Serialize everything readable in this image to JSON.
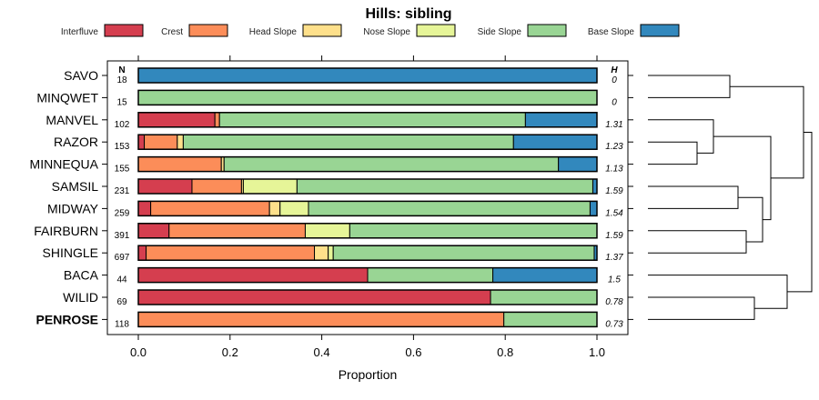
{
  "chart_data": {
    "type": "bar",
    "orientation": "horizontal-stacked",
    "title": "Hills: sibling",
    "xlabel": "Proportion",
    "xlim": [
      0,
      1
    ],
    "xticks": [
      0.0,
      0.2,
      0.4,
      0.6,
      0.8,
      1.0
    ],
    "xtick_labels": [
      "0.0",
      "0.2",
      "0.4",
      "0.6",
      "0.8",
      "1.0"
    ],
    "n_header": "N",
    "h_header": "H",
    "legend": [
      {
        "name": "Interfluve",
        "color": "#d53e4f"
      },
      {
        "name": "Crest",
        "color": "#fc8d59"
      },
      {
        "name": "Head Slope",
        "color": "#fee08b"
      },
      {
        "name": "Nose Slope",
        "color": "#e6f598"
      },
      {
        "name": "Side Slope",
        "color": "#99d594"
      },
      {
        "name": "Base Slope",
        "color": "#3288bd"
      }
    ],
    "rows": [
      {
        "label": "SAVO",
        "n": "18",
        "h": "0",
        "bold": false,
        "values": [
          0,
          0,
          0,
          0,
          0,
          1.0
        ]
      },
      {
        "label": "MINQWET",
        "n": "15",
        "h": "0",
        "bold": false,
        "values": [
          0,
          0,
          0,
          0,
          1.0,
          0
        ]
      },
      {
        "label": "MANVEL",
        "n": "102",
        "h": "1.31",
        "bold": false,
        "values": [
          0.167,
          0.01,
          0,
          0,
          0.667,
          0.156
        ]
      },
      {
        "label": "RAZOR",
        "n": "153",
        "h": "1.23",
        "bold": false,
        "values": [
          0.013,
          0.072,
          0.013,
          0,
          0.72,
          0.182
        ]
      },
      {
        "label": "MINNEQUA",
        "n": "155",
        "h": "1.13",
        "bold": false,
        "values": [
          0,
          0.181,
          0.006,
          0,
          0.729,
          0.084
        ]
      },
      {
        "label": "SAMSIL",
        "n": "231",
        "h": "1.59",
        "bold": false,
        "values": [
          0.117,
          0.108,
          0.004,
          0.117,
          0.645,
          0.009
        ]
      },
      {
        "label": "MIDWAY",
        "n": "259",
        "h": "1.54",
        "bold": false,
        "values": [
          0.027,
          0.259,
          0.023,
          0.062,
          0.614,
          0.015
        ]
      },
      {
        "label": "FAIRBURN",
        "n": "391",
        "h": "1.59",
        "bold": false,
        "values": [
          0.067,
          0.297,
          0,
          0.097,
          0.539,
          0
        ]
      },
      {
        "label": "SHINGLE",
        "n": "697",
        "h": "1.37",
        "bold": false,
        "values": [
          0.017,
          0.367,
          0.03,
          0.011,
          0.569,
          0.006
        ]
      },
      {
        "label": "BACA",
        "n": "44",
        "h": "1.5",
        "bold": false,
        "values": [
          0.5,
          0,
          0,
          0,
          0.273,
          0.227
        ]
      },
      {
        "label": "WILID",
        "n": "69",
        "h": "0.78",
        "bold": false,
        "values": [
          0.768,
          0,
          0,
          0,
          0.232,
          0
        ]
      },
      {
        "label": "PENROSE",
        "n": "118",
        "h": "0.73",
        "bold": true,
        "values": [
          0,
          0.797,
          0,
          0,
          0.203,
          0
        ]
      }
    ],
    "dendrogram": {
      "merges": [
        [
          3,
          4,
          0.3
        ],
        [
          2,
          100,
          0.4
        ],
        [
          0,
          1,
          0.5
        ],
        [
          5,
          6,
          0.55
        ],
        [
          7,
          8,
          0.6
        ],
        [
          10,
          11,
          0.65
        ],
        [
          103,
          104,
          0.7
        ],
        [
          101,
          106,
          0.75
        ],
        [
          9,
          105,
          0.85
        ],
        [
          102,
          107,
          0.95
        ],
        [
          108,
          109,
          1.0
        ]
      ]
    }
  }
}
